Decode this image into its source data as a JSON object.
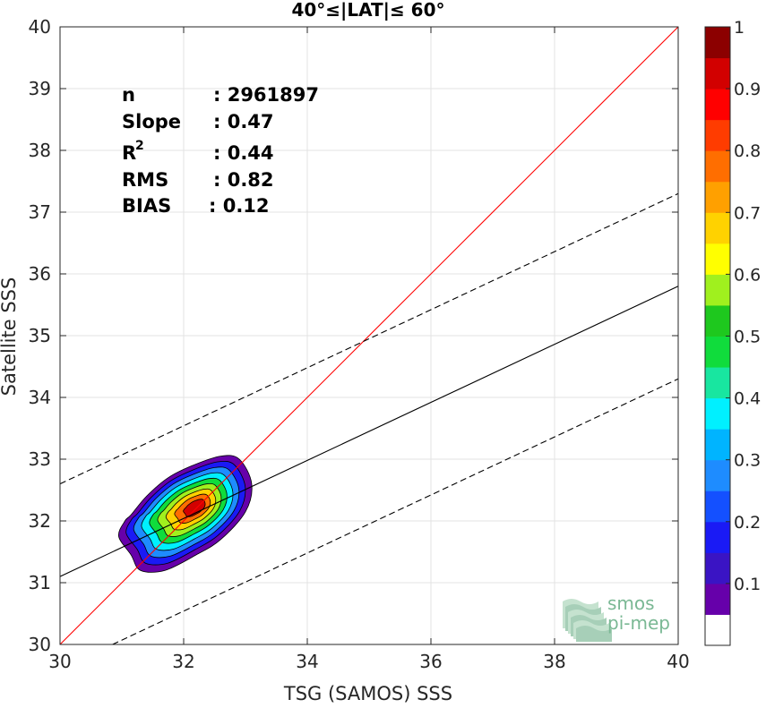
{
  "chart_data": {
    "type": "contour",
    "title": "40°≤|LAT|≤ 60°",
    "xlabel": "TSG (SAMOS) SSS",
    "ylabel": "Satellite SSS",
    "xlim": [
      30,
      40
    ],
    "ylim": [
      30,
      40
    ],
    "xticks": [
      "30",
      "32",
      "34",
      "36",
      "38",
      "40"
    ],
    "yticks": [
      "30",
      "31",
      "32",
      "33",
      "34",
      "35",
      "36",
      "37",
      "38",
      "39",
      "40"
    ],
    "grid": true,
    "stats": [
      {
        "label": "n",
        "value": ": 2961897"
      },
      {
        "label": "Slope",
        "value": ": 0.47"
      },
      {
        "label": "R",
        "sup": "2",
        "value": ": 0.44"
      },
      {
        "label": "RMS",
        "value": ": 0.82"
      },
      {
        "label": "BIAS",
        "value": ": 0.12"
      }
    ],
    "lines": {
      "identity": {
        "x": [
          30,
          40
        ],
        "y": [
          30,
          40
        ],
        "color": "#ff0000"
      },
      "regression": {
        "x": [
          30,
          40
        ],
        "y": [
          31.1,
          35.8
        ],
        "color": "#000000"
      },
      "upper_bound": {
        "x": [
          30,
          40
        ],
        "y": [
          32.6,
          37.3
        ],
        "color": "#000000",
        "dash": true
      },
      "lower_bound": {
        "x": [
          30.85,
          40
        ],
        "y": [
          30,
          34.3
        ],
        "color": "#000000",
        "dash": true
      }
    },
    "density": {
      "center": [
        32.08,
        32.18
      ],
      "levels": [
        0.05,
        0.15,
        0.25,
        0.35,
        0.45,
        0.55,
        0.65,
        0.75,
        0.85
      ],
      "outer_boundary": [
        [
          31.3,
          31.2
        ],
        [
          31.15,
          31.45
        ],
        [
          30.95,
          31.75
        ],
        [
          31.05,
          32.0
        ],
        [
          31.15,
          32.1
        ],
        [
          31.4,
          32.4
        ],
        [
          31.75,
          32.7
        ],
        [
          32.15,
          32.9
        ],
        [
          32.6,
          33.05
        ],
        [
          32.9,
          33.0
        ],
        [
          33.1,
          32.6
        ],
        [
          33.0,
          32.15
        ],
        [
          32.6,
          31.7
        ],
        [
          32.2,
          31.45
        ],
        [
          31.7,
          31.2
        ]
      ],
      "colorbar": {
        "ticks": [
          "0.1",
          "0.2",
          "0.3",
          "0.4",
          "0.5",
          "0.6",
          "0.7",
          "0.8",
          "0.9",
          "1"
        ],
        "colors": [
          "#ffffff",
          "#6600aa",
          "#3a14c4",
          "#1a1af5",
          "#1450ff",
          "#1e8cff",
          "#00b4ff",
          "#00f0ff",
          "#18e6a0",
          "#10dc3c",
          "#1ec81e",
          "#a0f01e",
          "#ffff00",
          "#ffd200",
          "#ffa000",
          "#ff6e00",
          "#ff3c00",
          "#ff0000",
          "#d20000",
          "#8c0000"
        ]
      }
    }
  },
  "watermark": {
    "line1": "smos",
    "line2": "pi-mep"
  }
}
